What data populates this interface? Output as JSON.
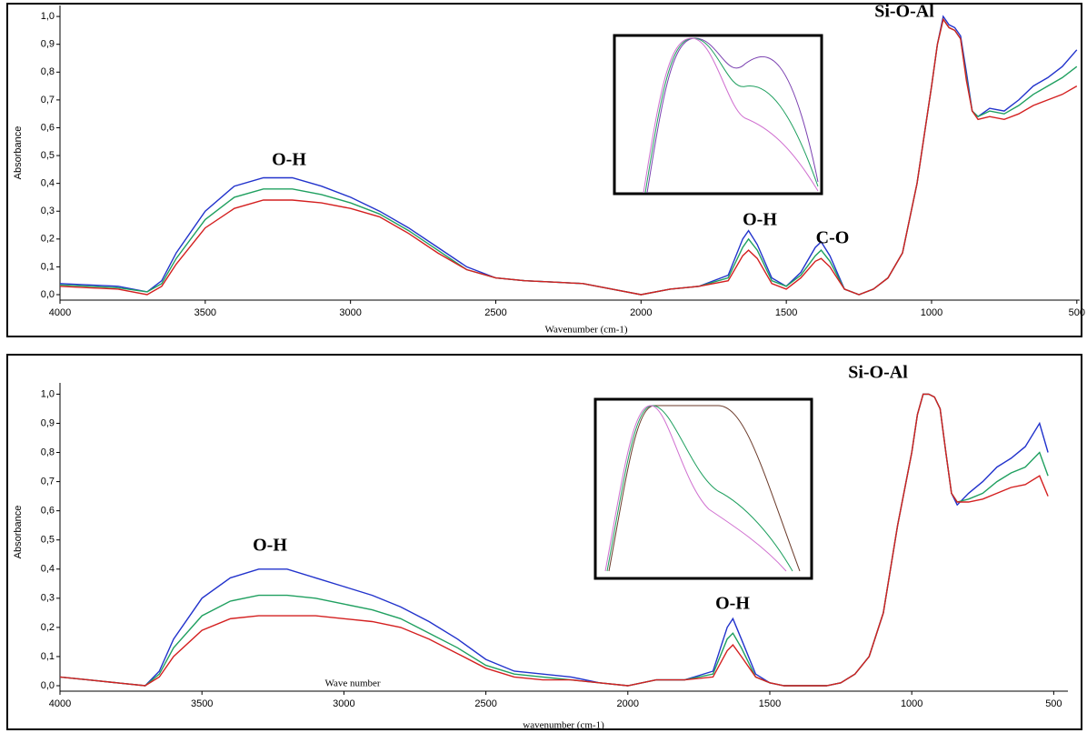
{
  "chart_data": [
    {
      "type": "line",
      "y_label": "Absorbance",
      "x_label": "Wavenumber (cm-1)",
      "annotations": [
        "O-H",
        "O-H",
        "C-O",
        "Si-O-Al"
      ],
      "xlim": [
        4000,
        490
      ],
      "ylim": [
        0,
        1.02
      ],
      "xticks": [
        4000,
        3500,
        3000,
        2500,
        2000,
        1500,
        1000,
        500
      ],
      "yticks": [
        {
          "value": 0,
          "label": "0,0"
        },
        {
          "value": 0.1,
          "label": "0,1"
        },
        {
          "value": 0.2,
          "label": "0,2"
        },
        {
          "value": 0.3,
          "label": "0,3"
        },
        {
          "value": 0.4,
          "label": "0,4"
        },
        {
          "value": 0.5,
          "label": "0,5"
        },
        {
          "value": 0.6,
          "label": "0,6"
        },
        {
          "value": 0.7,
          "label": "0,7"
        },
        {
          "value": 0.8,
          "label": "0,8"
        },
        {
          "value": 0.9,
          "label": "0,9"
        },
        {
          "value": 1,
          "label": "1,0"
        }
      ],
      "x": [
        4000,
        3900,
        3800,
        3700,
        3650,
        3600,
        3500,
        3400,
        3300,
        3200,
        3100,
        3000,
        2900,
        2800,
        2700,
        2600,
        2500,
        2400,
        2300,
        2200,
        2100,
        2000,
        1900,
        1800,
        1700,
        1650,
        1630,
        1600,
        1550,
        1500,
        1450,
        1400,
        1380,
        1350,
        1300,
        1250,
        1200,
        1150,
        1100,
        1050,
        1000,
        980,
        960,
        940,
        920,
        900,
        880,
        860,
        840,
        800,
        750,
        700,
        650,
        600,
        550,
        500
      ],
      "series": [
        {
          "color": "#2233cc",
          "values": [
            0.04,
            0.035,
            0.03,
            0.01,
            0.05,
            0.15,
            0.3,
            0.39,
            0.42,
            0.42,
            0.39,
            0.35,
            0.3,
            0.24,
            0.17,
            0.1,
            0.06,
            0.05,
            0.045,
            0.04,
            0.02,
            0.0,
            0.02,
            0.03,
            0.07,
            0.2,
            0.23,
            0.18,
            0.06,
            0.03,
            0.08,
            0.17,
            0.19,
            0.14,
            0.02,
            0.0,
            0.02,
            0.06,
            0.15,
            0.4,
            0.75,
            0.9,
            1.0,
            0.97,
            0.96,
            0.93,
            0.8,
            0.66,
            0.64,
            0.67,
            0.66,
            0.7,
            0.75,
            0.78,
            0.82,
            0.88
          ]
        },
        {
          "color": "#20a060",
          "values": [
            0.035,
            0.03,
            0.025,
            0.01,
            0.04,
            0.13,
            0.27,
            0.35,
            0.38,
            0.38,
            0.36,
            0.33,
            0.29,
            0.23,
            0.16,
            0.09,
            0.06,
            0.05,
            0.045,
            0.04,
            0.02,
            0.0,
            0.02,
            0.03,
            0.06,
            0.17,
            0.2,
            0.16,
            0.05,
            0.03,
            0.07,
            0.14,
            0.16,
            0.12,
            0.02,
            0.0,
            0.02,
            0.06,
            0.15,
            0.4,
            0.75,
            0.9,
            0.99,
            0.96,
            0.95,
            0.92,
            0.78,
            0.66,
            0.64,
            0.66,
            0.65,
            0.68,
            0.72,
            0.75,
            0.78,
            0.82
          ]
        },
        {
          "color": "#d42020",
          "values": [
            0.03,
            0.025,
            0.02,
            0.0,
            0.03,
            0.11,
            0.24,
            0.31,
            0.34,
            0.34,
            0.33,
            0.31,
            0.28,
            0.22,
            0.15,
            0.09,
            0.06,
            0.05,
            0.045,
            0.04,
            0.02,
            0.0,
            0.02,
            0.03,
            0.05,
            0.14,
            0.16,
            0.13,
            0.04,
            0.02,
            0.06,
            0.12,
            0.13,
            0.1,
            0.02,
            0.0,
            0.02,
            0.06,
            0.15,
            0.4,
            0.75,
            0.9,
            0.99,
            0.96,
            0.95,
            0.92,
            0.77,
            0.66,
            0.63,
            0.64,
            0.63,
            0.65,
            0.68,
            0.7,
            0.72,
            0.75
          ]
        }
      ]
    },
    {
      "type": "line",
      "y_label": "Absorbance",
      "x_label": "wavenumber (cm-1)",
      "note": "Wave number",
      "annotations": [
        "O-H",
        "O-H",
        "Si-O-Al"
      ],
      "xlim": [
        4000,
        450
      ],
      "ylim": [
        0,
        1.02
      ],
      "xticks": [
        4000,
        3500,
        3000,
        2500,
        2000,
        1500,
        1000,
        500
      ],
      "yticks": [
        {
          "value": 0,
          "label": "0,0"
        },
        {
          "value": 0.1,
          "label": "0,1"
        },
        {
          "value": 0.2,
          "label": "0,2"
        },
        {
          "value": 0.3,
          "label": "0,3"
        },
        {
          "value": 0.4,
          "label": "0,4"
        },
        {
          "value": 0.5,
          "label": "0,5"
        },
        {
          "value": 0.6,
          "label": "0,6"
        },
        {
          "value": 0.7,
          "label": "0,7"
        },
        {
          "value": 0.8,
          "label": "0,8"
        },
        {
          "value": 0.9,
          "label": "0,9"
        },
        {
          "value": 1,
          "label": "1,0"
        }
      ],
      "x": [
        4000,
        3900,
        3800,
        3700,
        3650,
        3600,
        3500,
        3400,
        3300,
        3200,
        3100,
        3000,
        2900,
        2800,
        2700,
        2600,
        2500,
        2400,
        2300,
        2200,
        2100,
        2000,
        1900,
        1800,
        1700,
        1650,
        1630,
        1600,
        1550,
        1500,
        1450,
        1400,
        1380,
        1350,
        1300,
        1250,
        1200,
        1150,
        1100,
        1050,
        1000,
        980,
        960,
        940,
        920,
        900,
        880,
        860,
        840,
        800,
        750,
        700,
        650,
        600,
        550,
        520
      ],
      "series": [
        {
          "color": "#2233cc",
          "values": [
            0.03,
            0.02,
            0.01,
            0.0,
            0.05,
            0.16,
            0.3,
            0.37,
            0.4,
            0.4,
            0.37,
            0.34,
            0.31,
            0.27,
            0.22,
            0.16,
            0.09,
            0.05,
            0.04,
            0.03,
            0.01,
            0.0,
            0.02,
            0.02,
            0.05,
            0.2,
            0.23,
            0.16,
            0.04,
            0.01,
            0.0,
            0.0,
            0.0,
            0.0,
            0.0,
            0.01,
            0.04,
            0.1,
            0.25,
            0.55,
            0.8,
            0.93,
            1.0,
            1.0,
            0.99,
            0.95,
            0.8,
            0.66,
            0.62,
            0.66,
            0.7,
            0.75,
            0.78,
            0.82,
            0.9,
            0.8
          ]
        },
        {
          "color": "#20a060",
          "values": [
            0.03,
            0.02,
            0.01,
            0.0,
            0.04,
            0.13,
            0.24,
            0.29,
            0.31,
            0.31,
            0.3,
            0.28,
            0.26,
            0.23,
            0.18,
            0.13,
            0.07,
            0.04,
            0.03,
            0.02,
            0.01,
            0.0,
            0.02,
            0.02,
            0.04,
            0.16,
            0.18,
            0.13,
            0.03,
            0.01,
            0.0,
            0.0,
            0.0,
            0.0,
            0.0,
            0.01,
            0.04,
            0.1,
            0.25,
            0.55,
            0.8,
            0.93,
            1.0,
            1.0,
            0.99,
            0.95,
            0.8,
            0.66,
            0.63,
            0.64,
            0.66,
            0.7,
            0.73,
            0.75,
            0.8,
            0.72
          ]
        },
        {
          "color": "#d42020",
          "values": [
            0.03,
            0.02,
            0.01,
            0.0,
            0.03,
            0.1,
            0.19,
            0.23,
            0.24,
            0.24,
            0.24,
            0.23,
            0.22,
            0.2,
            0.16,
            0.11,
            0.06,
            0.03,
            0.02,
            0.02,
            0.01,
            0.0,
            0.02,
            0.02,
            0.03,
            0.12,
            0.14,
            0.1,
            0.03,
            0.01,
            0.0,
            0.0,
            0.0,
            0.0,
            0.0,
            0.01,
            0.04,
            0.1,
            0.25,
            0.55,
            0.8,
            0.93,
            1.0,
            1.0,
            0.99,
            0.95,
            0.8,
            0.66,
            0.63,
            0.63,
            0.64,
            0.66,
            0.68,
            0.69,
            0.72,
            0.65
          ]
        }
      ]
    }
  ]
}
